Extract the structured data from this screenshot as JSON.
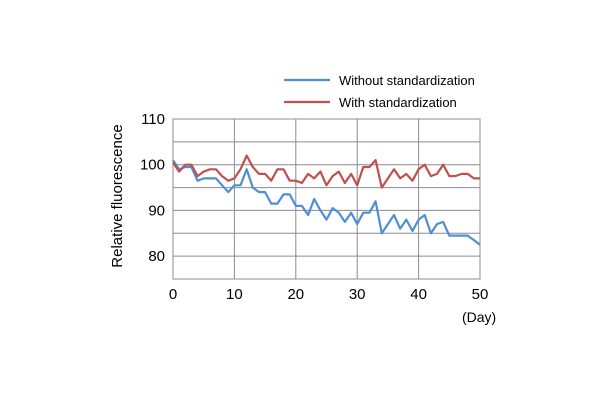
{
  "chart_data": {
    "type": "line",
    "title": "",
    "xlabel": "(Day)",
    "ylabel": "Relative fluorescence",
    "xlim": [
      0,
      50
    ],
    "ylim": [
      75,
      110
    ],
    "xticks": [
      0,
      10,
      20,
      30,
      40,
      50
    ],
    "yticks": [
      80,
      90,
      100,
      110
    ],
    "grid": true,
    "legend_position": "top-right",
    "series": [
      {
        "name": "Without standardization",
        "color": "#4d8fd6",
        "x": [
          0,
          1,
          2,
          3,
          4,
          5,
          6,
          7,
          8,
          9,
          10,
          11,
          12,
          13,
          14,
          15,
          16,
          17,
          18,
          19,
          20,
          21,
          22,
          23,
          24,
          25,
          26,
          27,
          28,
          29,
          30,
          31,
          32,
          33,
          34,
          35,
          36,
          37,
          38,
          39,
          40,
          41,
          42,
          43,
          44,
          45,
          46,
          47,
          48,
          49,
          50
        ],
        "y": [
          101,
          99,
          99.5,
          99.5,
          96.5,
          97,
          97,
          97,
          95.5,
          94,
          95.5,
          95.5,
          99,
          95,
          94,
          94,
          91.5,
          91.5,
          93.5,
          93.5,
          91,
          91,
          89,
          92.5,
          90,
          88,
          90.5,
          89.5,
          87.5,
          89.5,
          87,
          89.5,
          89.5,
          92,
          85,
          87,
          89,
          86,
          88,
          85.5,
          88,
          89,
          85,
          87,
          87.5,
          84.5,
          84.5,
          84.5,
          84.5,
          83.5,
          82.5
        ]
      },
      {
        "name": "With standardization",
        "color": "#c0504d",
        "x": [
          0,
          1,
          2,
          3,
          4,
          5,
          6,
          7,
          8,
          9,
          10,
          11,
          12,
          13,
          14,
          15,
          16,
          17,
          18,
          19,
          20,
          21,
          22,
          23,
          24,
          25,
          26,
          27,
          28,
          29,
          30,
          31,
          32,
          33,
          34,
          35,
          36,
          37,
          38,
          39,
          40,
          41,
          42,
          43,
          44,
          45,
          46,
          47,
          48,
          49,
          50
        ],
        "y": [
          100.5,
          98.5,
          100,
          100,
          97.5,
          98.5,
          99,
          99,
          97.5,
          96.5,
          97,
          99,
          102,
          99.5,
          98,
          98,
          96.5,
          99,
          99,
          96.5,
          96.5,
          96,
          98,
          97,
          98.5,
          95.5,
          97.5,
          98.5,
          96,
          98,
          95.5,
          99.5,
          99.5,
          101,
          95,
          97,
          99,
          97,
          98,
          96.5,
          99,
          100,
          97.5,
          98,
          100,
          97.5,
          97.5,
          98,
          98,
          97,
          97
        ]
      }
    ]
  }
}
